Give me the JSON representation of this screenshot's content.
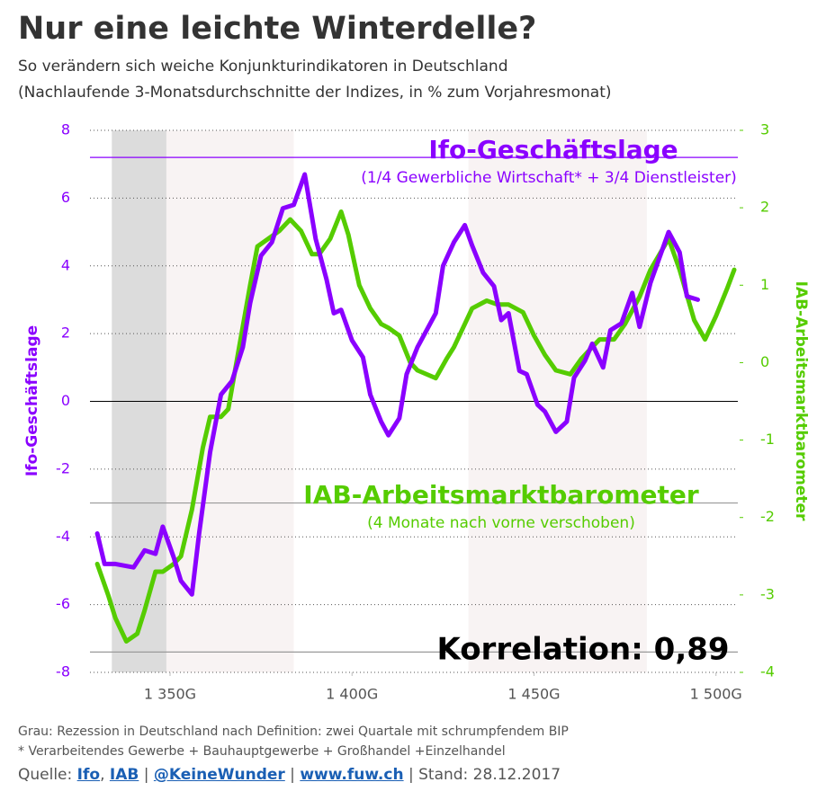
{
  "chart_data": {
    "type": "line",
    "title": "Nur eine leichte Winterdelle?",
    "subtitle": [
      "So verändern sich weiche Konjunkturindikatoren in Deutschland",
      "(Nachlaufende 3-Monatsdurchschnitte der Indizes, in % zum Vorjahresmonat)"
    ],
    "ylabel": "Ifo-Geschäftslage",
    "y2label": "IAB-Arbeitsmarktbarometer",
    "xlim": [
      1328,
      1506
    ],
    "xticks": [
      {
        "value": 1350,
        "label": "1 350G"
      },
      {
        "value": 1400,
        "label": "1 400G"
      },
      {
        "value": 1450,
        "label": "1 450G"
      },
      {
        "value": 1500,
        "label": "1 500G"
      }
    ],
    "ylim": [
      -8,
      8
    ],
    "yticks": [
      8,
      6,
      4,
      2,
      0,
      -2,
      -4,
      -6,
      -8
    ],
    "y2lim": [
      -4,
      3
    ],
    "y2ticks": [
      3,
      2,
      1,
      0,
      -1,
      -2,
      -3,
      -4
    ],
    "grid": true,
    "shaded_regions": [
      {
        "start": 1334,
        "end": 1349,
        "color": "#dcdcdc"
      },
      {
        "start": 1349,
        "end": 1384,
        "color": "#f8f3f3"
      },
      {
        "start": 1432,
        "end": 1481,
        "color": "#f8f3f3"
      }
    ],
    "hlines": [
      {
        "value": 7.2,
        "color": "#8a00ff"
      },
      {
        "value": -3,
        "color": "#999999"
      },
      {
        "value": -7.4,
        "color": "#999999"
      }
    ],
    "series": [
      {
        "name": "Ifo-Geschäftslage",
        "color": "#8a00ff",
        "x": [
          1330,
          1332,
          1335,
          1340,
          1343,
          1346,
          1348,
          1351,
          1353,
          1356,
          1358,
          1361,
          1364,
          1367,
          1370,
          1372,
          1375,
          1378,
          1381,
          1384,
          1387,
          1390,
          1393,
          1395,
          1397,
          1400,
          1403,
          1405,
          1408,
          1410,
          1413,
          1415,
          1418,
          1421,
          1423,
          1425,
          1428,
          1431,
          1433,
          1436,
          1439,
          1441,
          1443,
          1446,
          1448,
          1451,
          1453,
          1456,
          1459,
          1461,
          1464,
          1466,
          1469,
          1471,
          1474,
          1477,
          1479,
          1482,
          1484,
          1487,
          1490,
          1492,
          1495
        ],
        "values": [
          -3.9,
          -4.8,
          -4.8,
          -4.9,
          -4.4,
          -4.5,
          -3.7,
          -4.6,
          -5.3,
          -5.7,
          -3.9,
          -1.5,
          0.2,
          0.6,
          1.6,
          2.9,
          4.3,
          4.7,
          5.7,
          5.8,
          6.7,
          4.8,
          3.6,
          2.6,
          2.7,
          1.8,
          1.3,
          0.2,
          -0.6,
          -1.0,
          -0.5,
          0.8,
          1.6,
          2.2,
          2.6,
          4.0,
          4.7,
          5.2,
          4.6,
          3.8,
          3.4,
          2.4,
          2.6,
          0.9,
          0.8,
          -0.1,
          -0.3,
          -0.9,
          -0.6,
          0.7,
          1.2,
          1.7,
          1.0,
          2.1,
          2.3,
          3.2,
          2.2,
          3.5,
          4.1,
          5.0,
          4.4,
          3.1,
          3.0
        ]
      },
      {
        "name": "IAB-Arbeitsmarktbarometer",
        "color": "#55cc00",
        "axis": "y2",
        "x": [
          1330,
          1333,
          1335,
          1338,
          1341,
          1343,
          1346,
          1348,
          1351,
          1353,
          1356,
          1359,
          1361,
          1364,
          1366,
          1369,
          1372,
          1374,
          1377,
          1380,
          1383,
          1386,
          1389,
          1391,
          1394,
          1397,
          1399,
          1402,
          1405,
          1408,
          1410,
          1413,
          1416,
          1418,
          1423,
          1426,
          1428,
          1431,
          1433,
          1437,
          1440,
          1443,
          1447,
          1450,
          1453,
          1456,
          1460,
          1463,
          1466,
          1468,
          1472,
          1475,
          1479,
          1482,
          1487,
          1490,
          1494,
          1497,
          1500,
          1503,
          1505
        ],
        "values": [
          -2.6,
          -3.0,
          -3.3,
          -3.6,
          -3.5,
          -3.2,
          -2.7,
          -2.7,
          -2.6,
          -2.5,
          -1.9,
          -1.1,
          -0.7,
          -0.7,
          -0.6,
          0.2,
          1.0,
          1.5,
          1.6,
          1.7,
          1.85,
          1.7,
          1.4,
          1.4,
          1.6,
          1.95,
          1.65,
          1.0,
          0.7,
          0.5,
          0.45,
          0.35,
          0.0,
          -0.1,
          -0.2,
          0.05,
          0.2,
          0.5,
          0.7,
          0.8,
          0.75,
          0.75,
          0.65,
          0.35,
          0.1,
          -0.1,
          -0.15,
          0.05,
          0.2,
          0.3,
          0.3,
          0.5,
          0.85,
          1.2,
          1.6,
          1.2,
          0.55,
          0.3,
          0.6,
          0.95,
          1.2
        ]
      }
    ],
    "annotations": {
      "ifo_title": "Ifo-Geschäftslage",
      "ifo_note": "(1/4 Gewerbliche Wirtschaft* + 3/4 Dienstleister)",
      "iab_title": "IAB-Arbeitsmarktbarometer",
      "iab_note": "(4 Monate nach vorne verschoben)",
      "correlation": "Korrelation: 0,89"
    },
    "footnotes": [
      "Grau: Rezession in Deutschland nach Definition: zwei Quartale mit schrumpfendem BIP",
      "* Verarbeitendes Gewerbe + Bauhauptgewerbe + Großhandel +Einzelhandel"
    ],
    "source": [
      {
        "text": "Quelle: ",
        "link": false
      },
      {
        "text": "Ifo",
        "link": true
      },
      {
        "text": ", ",
        "link": false
      },
      {
        "text": "IAB",
        "link": true
      },
      {
        "text": " | ",
        "link": false
      },
      {
        "text": "@KeineWunder",
        "link": true
      },
      {
        "text": " | ",
        "link": false
      },
      {
        "text": "www.fuw.ch",
        "link": true
      },
      {
        "text": " | Stand: 28.12.2017",
        "link": false
      }
    ]
  }
}
